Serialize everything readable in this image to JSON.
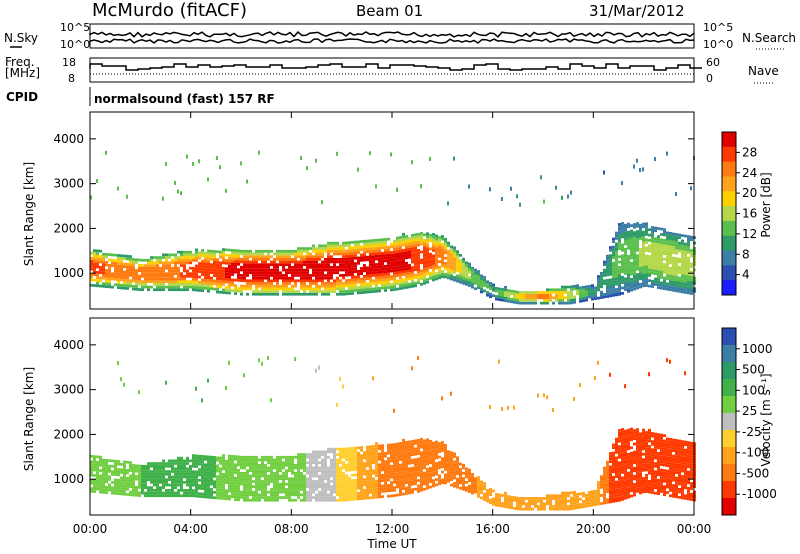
{
  "header": {
    "station": "McMurdo (fitACF)",
    "beam": "Beam 01",
    "date": "31/Mar/2012"
  },
  "noise_panel": {
    "left_label": "N.Sky",
    "top_tick": "10^5",
    "bottom_tick": "10^0",
    "right_label": "N.Search",
    "right_top_tick": "10^5",
    "right_bottom_tick": "10^0"
  },
  "freq_panel": {
    "left_label_top": "Freq.",
    "left_label_bottom": "[MHz]",
    "top_tick": "18",
    "bottom_tick": "8",
    "right_label": "Nave",
    "right_top_tick": "60",
    "right_bottom_tick": "0"
  },
  "cpid": {
    "label": "CPID",
    "value": "normalsound (fast) 157 RF"
  },
  "power_colorbar": {
    "label": "Power [dB]",
    "ticks": [
      "28",
      "24",
      "20",
      "16",
      "12",
      "8",
      "4"
    ],
    "colors": [
      "#e00000",
      "#ff3a00",
      "#ff7a10",
      "#ffa21c",
      "#ffd000",
      "#b4d84a",
      "#5bbf4e",
      "#2e9a68",
      "#3c7ea6",
      "#2a4fb0",
      "#1a1eff"
    ]
  },
  "velocity_colorbar": {
    "label": "Velocity [m s⁻¹]",
    "ticks": [
      "1000",
      "500",
      "100",
      "25",
      "-25",
      "-100",
      "-500",
      "-1000"
    ],
    "colors": [
      "#2a4fb0",
      "#3c7ea6",
      "#2e9a68",
      "#3fb04a",
      "#72cf42",
      "#bfbfbf",
      "#ffcf30",
      "#ffa21c",
      "#ff7a10",
      "#ff3a00",
      "#e00000"
    ]
  },
  "chart_data": [
    {
      "type": "heatmap",
      "title": "Power",
      "xlabel": "",
      "ylabel": "Slant Range [km]",
      "x_ticks": [
        "00:00",
        "04:00",
        "08:00",
        "12:00",
        "16:00",
        "20:00",
        "00:00"
      ],
      "y_ticks": [
        "1000",
        "2000",
        "3000",
        "4000"
      ],
      "ylim": [
        200,
        4600
      ],
      "xlim_hours": [
        0,
        24
      ],
      "echo_band": {
        "hours": [
          0,
          2,
          4,
          6,
          8,
          10,
          12,
          13,
          14,
          15,
          16,
          17,
          18,
          19,
          20,
          21,
          22,
          23,
          24
        ],
        "lower_km": [
          700,
          600,
          600,
          500,
          500,
          500,
          600,
          700,
          900,
          700,
          400,
          300,
          300,
          300,
          400,
          500,
          700,
          600,
          500
        ],
        "upper_km": [
          1500,
          1300,
          1500,
          1500,
          1500,
          1700,
          1800,
          1900,
          1800,
          1200,
          700,
          600,
          600,
          700,
          700,
          2100,
          2100,
          1900,
          1800
        ],
        "peak_power_db": [
          26,
          24,
          26,
          30,
          30,
          30,
          30,
          28,
          24,
          14,
          10,
          18,
          24,
          16,
          8,
          12,
          14,
          16,
          14
        ]
      }
    },
    {
      "type": "heatmap",
      "title": "Velocity",
      "xlabel": "Time UT",
      "ylabel": "Slant Range [km]",
      "x_ticks": [
        "00:00",
        "04:00",
        "08:00",
        "12:00",
        "16:00",
        "20:00",
        "00:00"
      ],
      "y_ticks": [
        "1000",
        "2000",
        "3000",
        "4000"
      ],
      "ylim": [
        200,
        4600
      ],
      "xlim_hours": [
        0,
        24
      ],
      "echo_band": {
        "hours": [
          0,
          2,
          4,
          6,
          8,
          10,
          12,
          13,
          14,
          15,
          16,
          17,
          18,
          19,
          20,
          21,
          22,
          23,
          24
        ],
        "lower_km": [
          700,
          600,
          600,
          500,
          500,
          500,
          600,
          700,
          900,
          700,
          400,
          300,
          300,
          300,
          400,
          500,
          700,
          600,
          500
        ],
        "upper_km": [
          1500,
          1300,
          1500,
          1500,
          1500,
          1700,
          1800,
          1900,
          1800,
          1200,
          700,
          600,
          600,
          700,
          700,
          2100,
          2100,
          1900,
          1800
        ],
        "velocity_ms": [
          80,
          100,
          120,
          80,
          60,
          20,
          -150,
          -200,
          -150,
          -120,
          -60,
          -100,
          -80,
          -60,
          -40,
          -400,
          -500,
          -450,
          -400
        ]
      }
    }
  ]
}
